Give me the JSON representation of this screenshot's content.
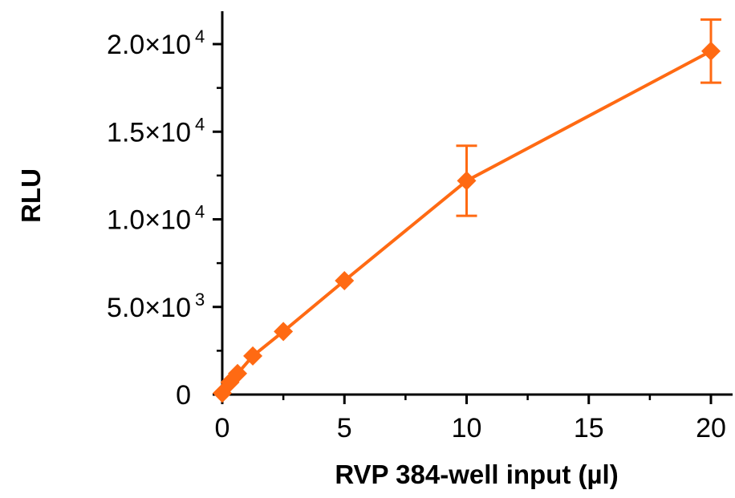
{
  "chart_data": {
    "type": "line",
    "title": "",
    "xlabel": "RVP 384-well input (µl)",
    "ylabel": "RLU",
    "xlim": [
      0,
      20.8
    ],
    "ylim": [
      0,
      22000
    ],
    "x_ticks": [
      {
        "value": 0,
        "label": "0"
      },
      {
        "value": 5,
        "label": "5"
      },
      {
        "value": 10,
        "label": "10"
      },
      {
        "value": 15,
        "label": "15"
      },
      {
        "value": 20,
        "label": "20"
      }
    ],
    "x_minor_ticks": [
      2.5,
      7.5,
      12.5,
      17.5
    ],
    "y_ticks": [
      {
        "value": 0,
        "label": "0",
        "sup": ""
      },
      {
        "value": 5000,
        "label": "5.0×10",
        "sup": "3"
      },
      {
        "value": 10000,
        "label": "1.0×10",
        "sup": "4"
      },
      {
        "value": 15000,
        "label": "1.5×10",
        "sup": "4"
      },
      {
        "value": 20000,
        "label": "2.0×10",
        "sup": "4"
      }
    ],
    "y_minor_ticks": [
      2500,
      7500,
      12500,
      17500
    ],
    "grid": false,
    "legend": "none",
    "series": [
      {
        "color": "#FF6A13",
        "marker": "diamond",
        "x": [
          0,
          0.3125,
          0.625,
          1.25,
          2.5,
          5,
          10,
          20
        ],
        "y": [
          80,
          700,
          1200,
          2200,
          3600,
          6500,
          12200,
          19600
        ],
        "err": [
          0,
          0,
          0,
          0,
          0,
          0,
          2000,
          1800
        ]
      }
    ]
  }
}
